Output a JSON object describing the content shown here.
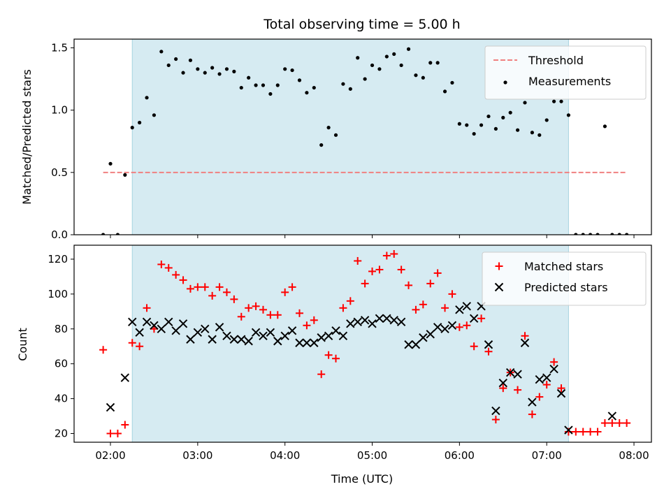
{
  "chart_data": [
    {
      "type": "scatter",
      "title": "Total observing time = 5.00 h",
      "xlabel": "",
      "ylabel": "Matched/Predicted stars",
      "ylim": [
        0,
        1.57
      ],
      "yticks": [
        0,
        0.5,
        1.0,
        1.5
      ],
      "ytick_labels": [
        "0.0",
        "0.5",
        "1.0",
        "1.5"
      ],
      "shaded_interval": [
        "02:15",
        "07:15"
      ],
      "threshold": {
        "name": "Threshold",
        "value": 0.5,
        "x": [
          "01:55",
          "07:55"
        ],
        "color": "#f08080"
      },
      "legend": {
        "placement": "top-right",
        "entries": [
          "Threshold",
          "Measurements"
        ]
      },
      "series": [
        {
          "name": "Measurements",
          "color": "#000000",
          "x": [
            "01:55",
            "02:00",
            "02:05",
            "02:10",
            "02:15",
            "02:20",
            "02:25",
            "02:30",
            "02:35",
            "02:40",
            "02:45",
            "02:50",
            "02:55",
            "03:00",
            "03:05",
            "03:10",
            "03:15",
            "03:20",
            "03:25",
            "03:30",
            "03:35",
            "03:40",
            "03:45",
            "03:50",
            "03:55",
            "04:00",
            "04:05",
            "04:10",
            "04:15",
            "04:20",
            "04:25",
            "04:30",
            "04:35",
            "04:40",
            "04:45",
            "04:50",
            "04:55",
            "05:00",
            "05:05",
            "05:10",
            "05:15",
            "05:20",
            "05:25",
            "05:30",
            "05:35",
            "05:40",
            "05:45",
            "05:50",
            "05:55",
            "06:00",
            "06:05",
            "06:10",
            "06:15",
            "06:20",
            "06:25",
            "06:30",
            "06:35",
            "06:40",
            "06:45",
            "06:50",
            "06:55",
            "07:00",
            "07:05",
            "07:10",
            "07:15",
            "07:20",
            "07:25",
            "07:30",
            "07:35",
            "07:40",
            "07:45",
            "07:50",
            "07:55"
          ],
          "values": [
            0.0,
            0.57,
            0.0,
            0.48,
            0.86,
            0.9,
            1.1,
            0.96,
            1.47,
            1.36,
            1.41,
            1.3,
            1.4,
            1.33,
            1.3,
            1.34,
            1.29,
            1.33,
            1.31,
            1.18,
            1.26,
            1.2,
            1.2,
            1.13,
            1.2,
            1.33,
            1.32,
            1.24,
            1.14,
            1.18,
            0.72,
            0.86,
            0.8,
            1.21,
            1.17,
            1.42,
            1.25,
            1.36,
            1.33,
            1.43,
            1.45,
            1.36,
            1.49,
            1.28,
            1.26,
            1.38,
            1.38,
            1.15,
            1.22,
            0.89,
            0.88,
            0.81,
            0.88,
            0.95,
            0.85,
            0.94,
            0.98,
            0.84,
            1.06,
            0.82,
            0.8,
            0.92,
            1.07,
            1.07,
            0.96,
            0.0,
            0.0,
            0.0,
            0.0,
            0.87,
            0.0,
            0.0,
            0.0
          ]
        }
      ]
    },
    {
      "type": "scatter",
      "title": "",
      "xlabel": "Time (UTC)",
      "ylabel": "Count",
      "ylim": [
        15,
        128
      ],
      "yticks": [
        20,
        40,
        60,
        80,
        100,
        120
      ],
      "xlim": [
        "01:35",
        "08:12"
      ],
      "xticks": [
        "02:00",
        "03:00",
        "04:00",
        "05:00",
        "06:00",
        "07:00",
        "08:00"
      ],
      "shaded_interval": [
        "02:15",
        "07:15"
      ],
      "legend": {
        "placement": "top-right",
        "entries": [
          "Matched stars",
          "Predicted stars"
        ]
      },
      "series": [
        {
          "name": "Matched stars",
          "marker": "plus",
          "color": "#ff0000",
          "x": [
            "01:55",
            "02:00",
            "02:05",
            "02:10",
            "02:15",
            "02:20",
            "02:25",
            "02:30",
            "02:35",
            "02:40",
            "02:45",
            "02:50",
            "02:55",
            "03:00",
            "03:05",
            "03:10",
            "03:15",
            "03:20",
            "03:25",
            "03:30",
            "03:35",
            "03:40",
            "03:45",
            "03:50",
            "03:55",
            "04:00",
            "04:05",
            "04:10",
            "04:15",
            "04:20",
            "04:25",
            "04:30",
            "04:35",
            "04:40",
            "04:45",
            "04:50",
            "04:55",
            "05:00",
            "05:05",
            "05:10",
            "05:15",
            "05:20",
            "05:25",
            "05:30",
            "05:35",
            "05:40",
            "05:45",
            "05:50",
            "05:55",
            "06:00",
            "06:05",
            "06:10",
            "06:15",
            "06:20",
            "06:25",
            "06:30",
            "06:35",
            "06:40",
            "06:45",
            "06:50",
            "06:55",
            "07:00",
            "07:05",
            "07:10",
            "07:15",
            "07:20",
            "07:25",
            "07:30",
            "07:35",
            "07:40",
            "07:45",
            "07:50",
            "07:55"
          ],
          "values": [
            68,
            20,
            20,
            25,
            72,
            70,
            92,
            80,
            117,
            115,
            111,
            108,
            103,
            104,
            104,
            99,
            104,
            101,
            97,
            87,
            92,
            93,
            91,
            88,
            88,
            101,
            104,
            89,
            82,
            85,
            54,
            65,
            63,
            92,
            96,
            119,
            106,
            113,
            114,
            122,
            123,
            114,
            105,
            91,
            94,
            106,
            112,
            92,
            100,
            81,
            82,
            70,
            86,
            67,
            28,
            46,
            55,
            45,
            76,
            31,
            41,
            48,
            61,
            46,
            21,
            21,
            21,
            21,
            21,
            26,
            26,
            26,
            26
          ]
        },
        {
          "name": "Predicted stars",
          "marker": "x",
          "color": "#000000",
          "x": [
            "02:00",
            "02:10",
            "02:15",
            "02:20",
            "02:25",
            "02:30",
            "02:35",
            "02:40",
            "02:45",
            "02:50",
            "02:55",
            "03:00",
            "03:05",
            "03:10",
            "03:15",
            "03:20",
            "03:25",
            "03:30",
            "03:35",
            "03:40",
            "03:45",
            "03:50",
            "03:55",
            "04:00",
            "04:05",
            "04:10",
            "04:15",
            "04:20",
            "04:25",
            "04:30",
            "04:35",
            "04:40",
            "04:45",
            "04:50",
            "04:55",
            "05:00",
            "05:05",
            "05:10",
            "05:15",
            "05:20",
            "05:25",
            "05:30",
            "05:35",
            "05:40",
            "05:45",
            "05:50",
            "05:55",
            "06:00",
            "06:05",
            "06:10",
            "06:15",
            "06:20",
            "06:25",
            "06:30",
            "06:35",
            "06:40",
            "06:45",
            "06:50",
            "06:55",
            "07:00",
            "07:05",
            "07:10",
            "07:15",
            "07:45"
          ],
          "values": [
            35,
            52,
            84,
            78,
            84,
            82,
            80,
            84,
            79,
            83,
            74,
            78,
            80,
            74,
            81,
            76,
            74,
            74,
            73,
            78,
            76,
            78,
            73,
            76,
            79,
            72,
            72,
            72,
            75,
            76,
            79,
            76,
            83,
            84,
            85,
            83,
            86,
            86,
            85,
            84,
            71,
            71,
            75,
            77,
            81,
            80,
            82,
            91,
            93,
            86,
            93,
            71,
            33,
            49,
            55,
            54,
            72,
            38,
            51,
            52,
            57,
            43,
            22,
            30
          ]
        }
      ]
    }
  ]
}
